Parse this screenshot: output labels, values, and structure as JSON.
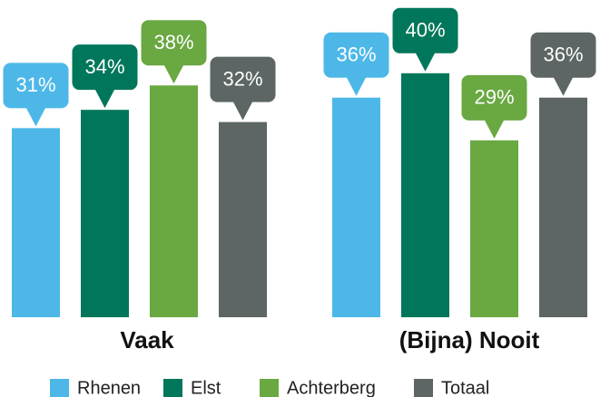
{
  "chart_data": {
    "type": "bar",
    "categories": [
      "Vaak",
      "(Bijna) Nooit"
    ],
    "series": [
      {
        "name": "Rhenen",
        "color": "#4db8e8",
        "values": [
          31,
          36
        ],
        "value_labels": [
          "31%",
          "36%"
        ]
      },
      {
        "name": "Elst",
        "color": "#00775a",
        "values": [
          34,
          40
        ],
        "value_labels": [
          "34%",
          "40%"
        ]
      },
      {
        "name": "Achterberg",
        "color": "#6aa842",
        "values": [
          38,
          29
        ],
        "value_labels": [
          "38%",
          "29%"
        ]
      },
      {
        "name": "Totaal",
        "color": "#5d6664",
        "values": [
          32,
          36
        ],
        "value_labels": [
          "32%",
          "36%"
        ]
      }
    ]
  }
}
